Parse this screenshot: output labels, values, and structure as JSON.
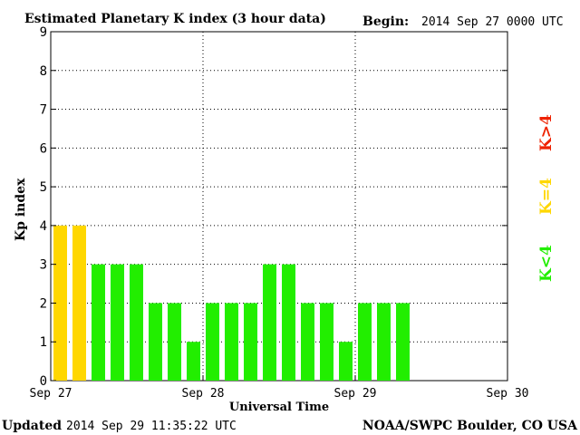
{
  "chart_data": {
    "type": "bar",
    "title": "Estimated Planetary K index (3 hour data)",
    "begin_label": "Begin:",
    "begin_value": "2014 Sep 27 0000 UTC",
    "ylabel": "Kp index",
    "xlabel": "Universal Time",
    "ylim": [
      0,
      9
    ],
    "xlim_days": [
      0,
      3
    ],
    "yticks": [
      0,
      1,
      2,
      3,
      4,
      5,
      6,
      7,
      8,
      9
    ],
    "xtick_labels": [
      "Sep 27",
      "Sep 28",
      "Sep 29",
      "Sep 30"
    ],
    "grid": true,
    "interval_hours": 3,
    "values": [
      4,
      4,
      3,
      3,
      3,
      2,
      2,
      1,
      2,
      2,
      2,
      3,
      3,
      2,
      2,
      1,
      2,
      2,
      2
    ],
    "colors": {
      "below": "#22ee00",
      "equal": "#ffd700",
      "above": "#ee2200"
    },
    "legend": {
      "above": "K>4",
      "equal": "K=4",
      "below": "K<4",
      "placement": "right"
    },
    "updated_label": "Updated",
    "updated_value": "2014 Sep 29 11:35:22 UTC",
    "source": "NOAA/SWPC Boulder, CO USA"
  }
}
